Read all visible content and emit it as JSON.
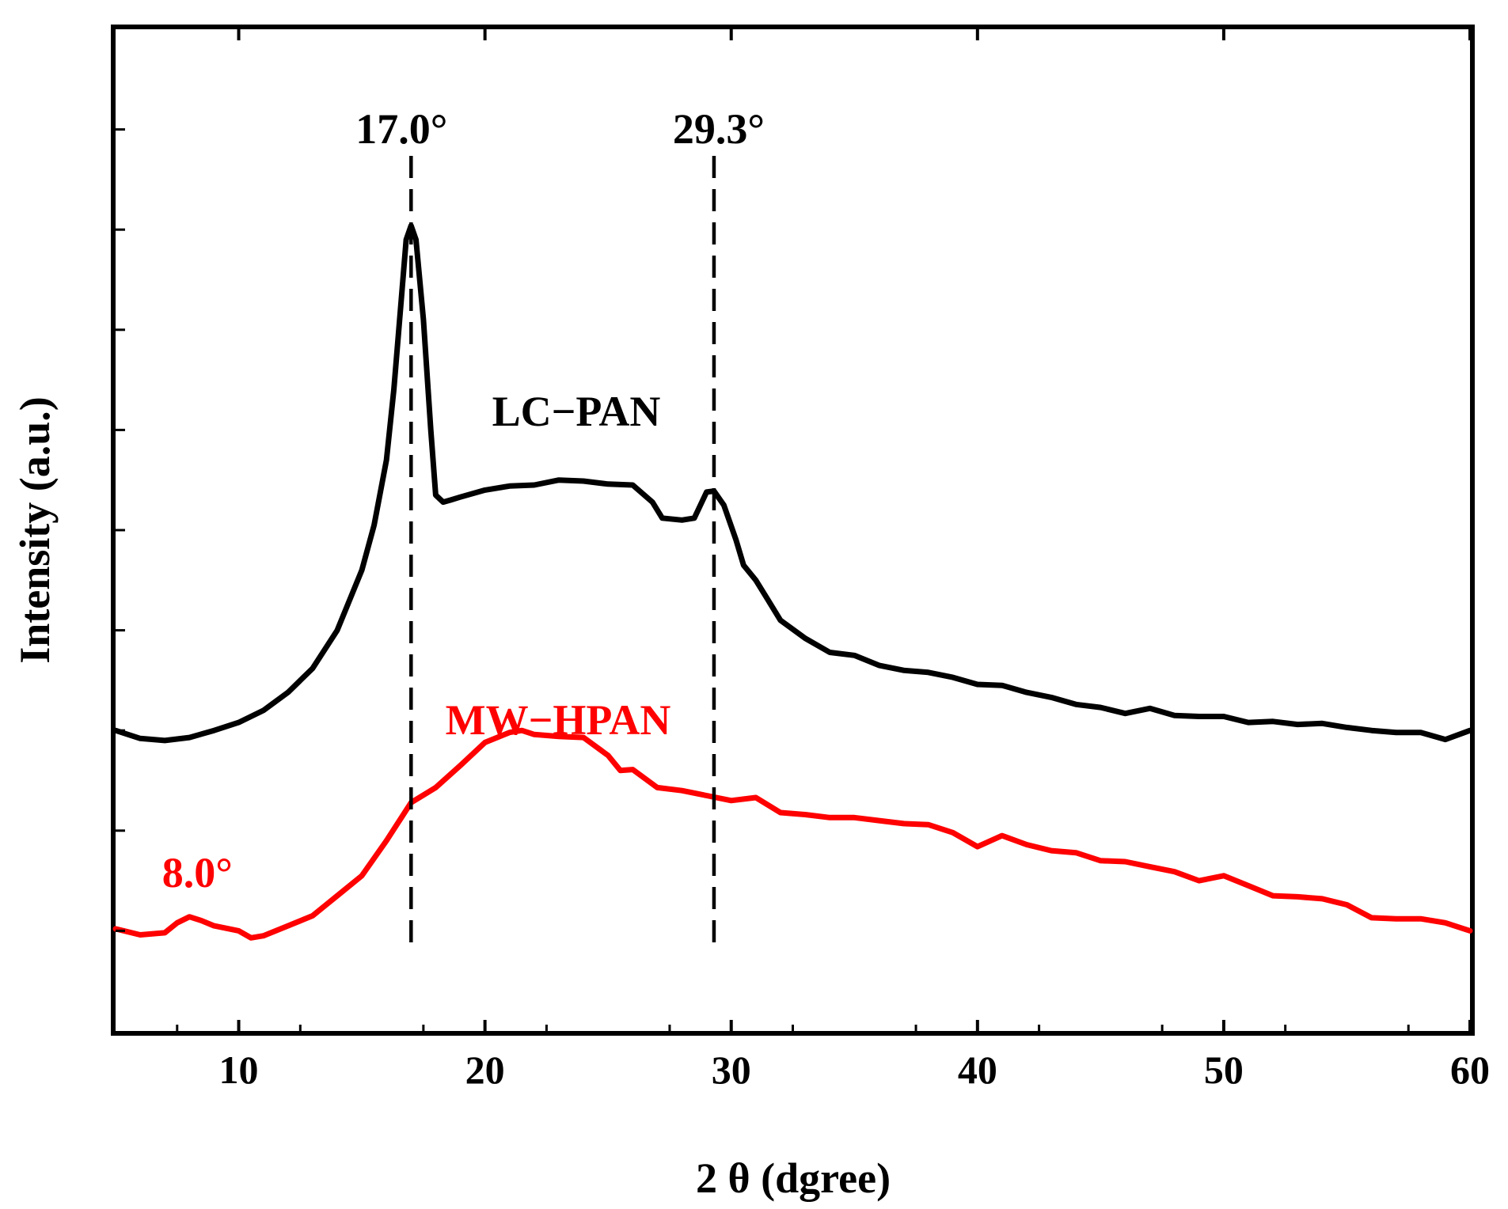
{
  "chart_data": {
    "type": "line",
    "xlabel": "2 θ (dgree)",
    "ylabel": "Intensity (a.u.)",
    "xlim": [
      5,
      60
    ],
    "ylim": [
      0,
      100
    ],
    "x_ticks": [
      10,
      20,
      30,
      40,
      50,
      60
    ],
    "x_tick_labels": [
      "10",
      "20",
      "30",
      "40",
      "50",
      "60"
    ],
    "grid": false,
    "colors": {
      "lc_pan": "#000000",
      "mw_hpan": "#ff0000",
      "axis": "#000000"
    },
    "series": [
      {
        "name": "LC−PAN",
        "color": "#000000",
        "x": [
          5,
          6,
          7,
          8,
          9,
          10,
          11,
          12,
          13,
          14,
          15,
          15.5,
          16,
          16.3,
          16.6,
          16.8,
          17.0,
          17.2,
          17.5,
          17.8,
          18.0,
          18.3,
          18.6,
          19,
          20,
          21,
          22,
          23,
          24,
          25,
          26,
          26.8,
          27.2,
          28,
          28.5,
          29.0,
          29.3,
          29.7,
          30.2,
          30.5,
          31,
          31.5,
          32,
          33,
          34,
          35,
          36,
          37,
          38,
          39,
          40,
          41,
          42,
          43,
          44,
          45,
          46,
          47,
          48,
          49,
          50,
          51,
          52,
          53,
          54,
          55,
          56,
          57,
          58,
          59,
          60
        ],
        "y": [
          30.0,
          29.2,
          29.0,
          29.3,
          30.0,
          30.8,
          32.0,
          33.8,
          36.2,
          40.0,
          46.0,
          50.5,
          57.0,
          64.0,
          73.0,
          79.0,
          80.4,
          79.0,
          71.0,
          60.0,
          53.5,
          52.8,
          53.0,
          53.3,
          54.0,
          54.4,
          54.5,
          55.0,
          54.9,
          54.6,
          54.5,
          52.8,
          51.2,
          51.0,
          51.2,
          53.8,
          53.9,
          52.5,
          49.0,
          46.5,
          45.0,
          43.0,
          41.0,
          39.2,
          37.8,
          37.5,
          36.5,
          36.0,
          35.8,
          35.3,
          34.6,
          34.5,
          33.8,
          33.3,
          32.6,
          32.3,
          31.7,
          32.2,
          31.5,
          31.4,
          31.4,
          30.8,
          30.9,
          30.6,
          30.7,
          30.3,
          30.0,
          29.8,
          29.8,
          29.1,
          30.0
        ]
      },
      {
        "name": "MW−HPAN",
        "color": "#ff0000",
        "x": [
          5,
          6,
          7,
          7.5,
          8,
          8.5,
          9,
          10,
          10.5,
          11,
          12,
          13,
          14,
          15,
          16,
          17,
          18,
          19,
          20,
          21,
          21.5,
          22,
          23,
          24,
          25,
          25.5,
          26,
          27,
          28,
          29,
          30,
          31,
          32,
          33,
          34,
          35,
          36,
          37,
          38,
          39,
          40,
          41,
          42,
          43,
          44,
          45,
          46,
          47,
          48,
          49,
          50,
          51,
          52,
          53,
          54,
          55,
          56,
          57,
          58,
          59,
          60
        ],
        "y": [
          10.2,
          9.6,
          9.8,
          10.8,
          11.4,
          11.0,
          10.5,
          10.0,
          9.3,
          9.5,
          10.5,
          11.5,
          13.5,
          15.5,
          19.0,
          22.8,
          24.3,
          26.5,
          28.8,
          29.8,
          30.0,
          29.6,
          29.4,
          29.3,
          27.5,
          26.0,
          26.1,
          24.3,
          24.0,
          23.5,
          23.0,
          23.3,
          21.8,
          21.6,
          21.3,
          21.3,
          21.0,
          20.7,
          20.6,
          19.8,
          18.4,
          19.5,
          18.6,
          18.0,
          17.8,
          17.0,
          16.9,
          16.4,
          15.9,
          15.0,
          15.5,
          14.5,
          13.5,
          13.4,
          13.2,
          12.6,
          11.3,
          11.2,
          11.2,
          10.8,
          10.0
        ]
      }
    ],
    "annotations": [
      {
        "name": "peak-17",
        "text": "17.0°",
        "x": 17.0,
        "color": "#000000",
        "dashed_line": true
      },
      {
        "name": "peak-29",
        "text": "29.3°",
        "x": 29.3,
        "color": "#000000",
        "dashed_line": true
      },
      {
        "name": "peak-8",
        "text": "8.0°",
        "x": 8.0,
        "color": "#ff0000",
        "dashed_line": false
      }
    ],
    "series_labels": [
      {
        "text": "LC−PAN",
        "color": "#000000"
      },
      {
        "text": "MW−HPAN",
        "color": "#ff0000"
      }
    ]
  }
}
